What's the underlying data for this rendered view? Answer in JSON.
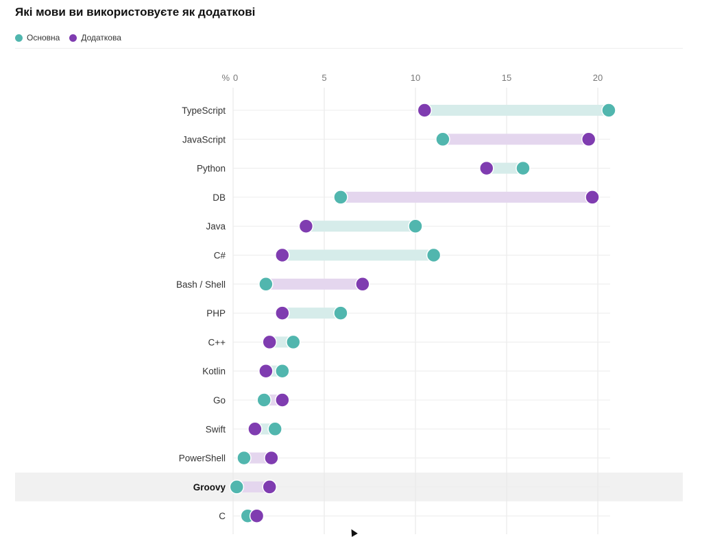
{
  "title": "Які мови ви використовуєте як додаткові",
  "legend": [
    {
      "label": "Основна",
      "color": "#51b6ae"
    },
    {
      "label": "Додаткова",
      "color": "#7f3cb0"
    }
  ],
  "colors": {
    "primary": "#51b6ae",
    "secondary": "#7f3cb0",
    "primary_band": "#d6ecea",
    "secondary_band": "#e4d6ee",
    "highlight_row": "#f1f1f1"
  },
  "chart_data": {
    "type": "dumbbell",
    "title": "Які мови ви використовуєте як додаткові",
    "xlabel": "%",
    "xlim": [
      0,
      21
    ],
    "xticks": [
      0,
      5,
      10,
      15,
      20
    ],
    "x_unit_label": "%",
    "grid": true,
    "legend_position": "top-left",
    "highlighted_category": "Groovy",
    "categories": [
      "TypeScript",
      "JavaScript",
      "Python",
      "DB",
      "Java",
      "C#",
      "Bash / Shell",
      "PHP",
      "C++",
      "Kotlin",
      "Go",
      "Swift",
      "PowerShell",
      "Groovy",
      "C"
    ],
    "series": [
      {
        "name": "Основна",
        "values": [
          20.6,
          11.5,
          15.9,
          5.9,
          10.0,
          11.0,
          1.8,
          5.9,
          3.3,
          2.7,
          1.7,
          2.3,
          0.6,
          0.2,
          0.8
        ]
      },
      {
        "name": "Додаткова",
        "values": [
          10.5,
          19.5,
          13.9,
          19.7,
          4.0,
          2.7,
          7.1,
          2.7,
          2.0,
          1.8,
          2.7,
          1.2,
          2.1,
          2.0,
          1.3
        ]
      }
    ]
  }
}
